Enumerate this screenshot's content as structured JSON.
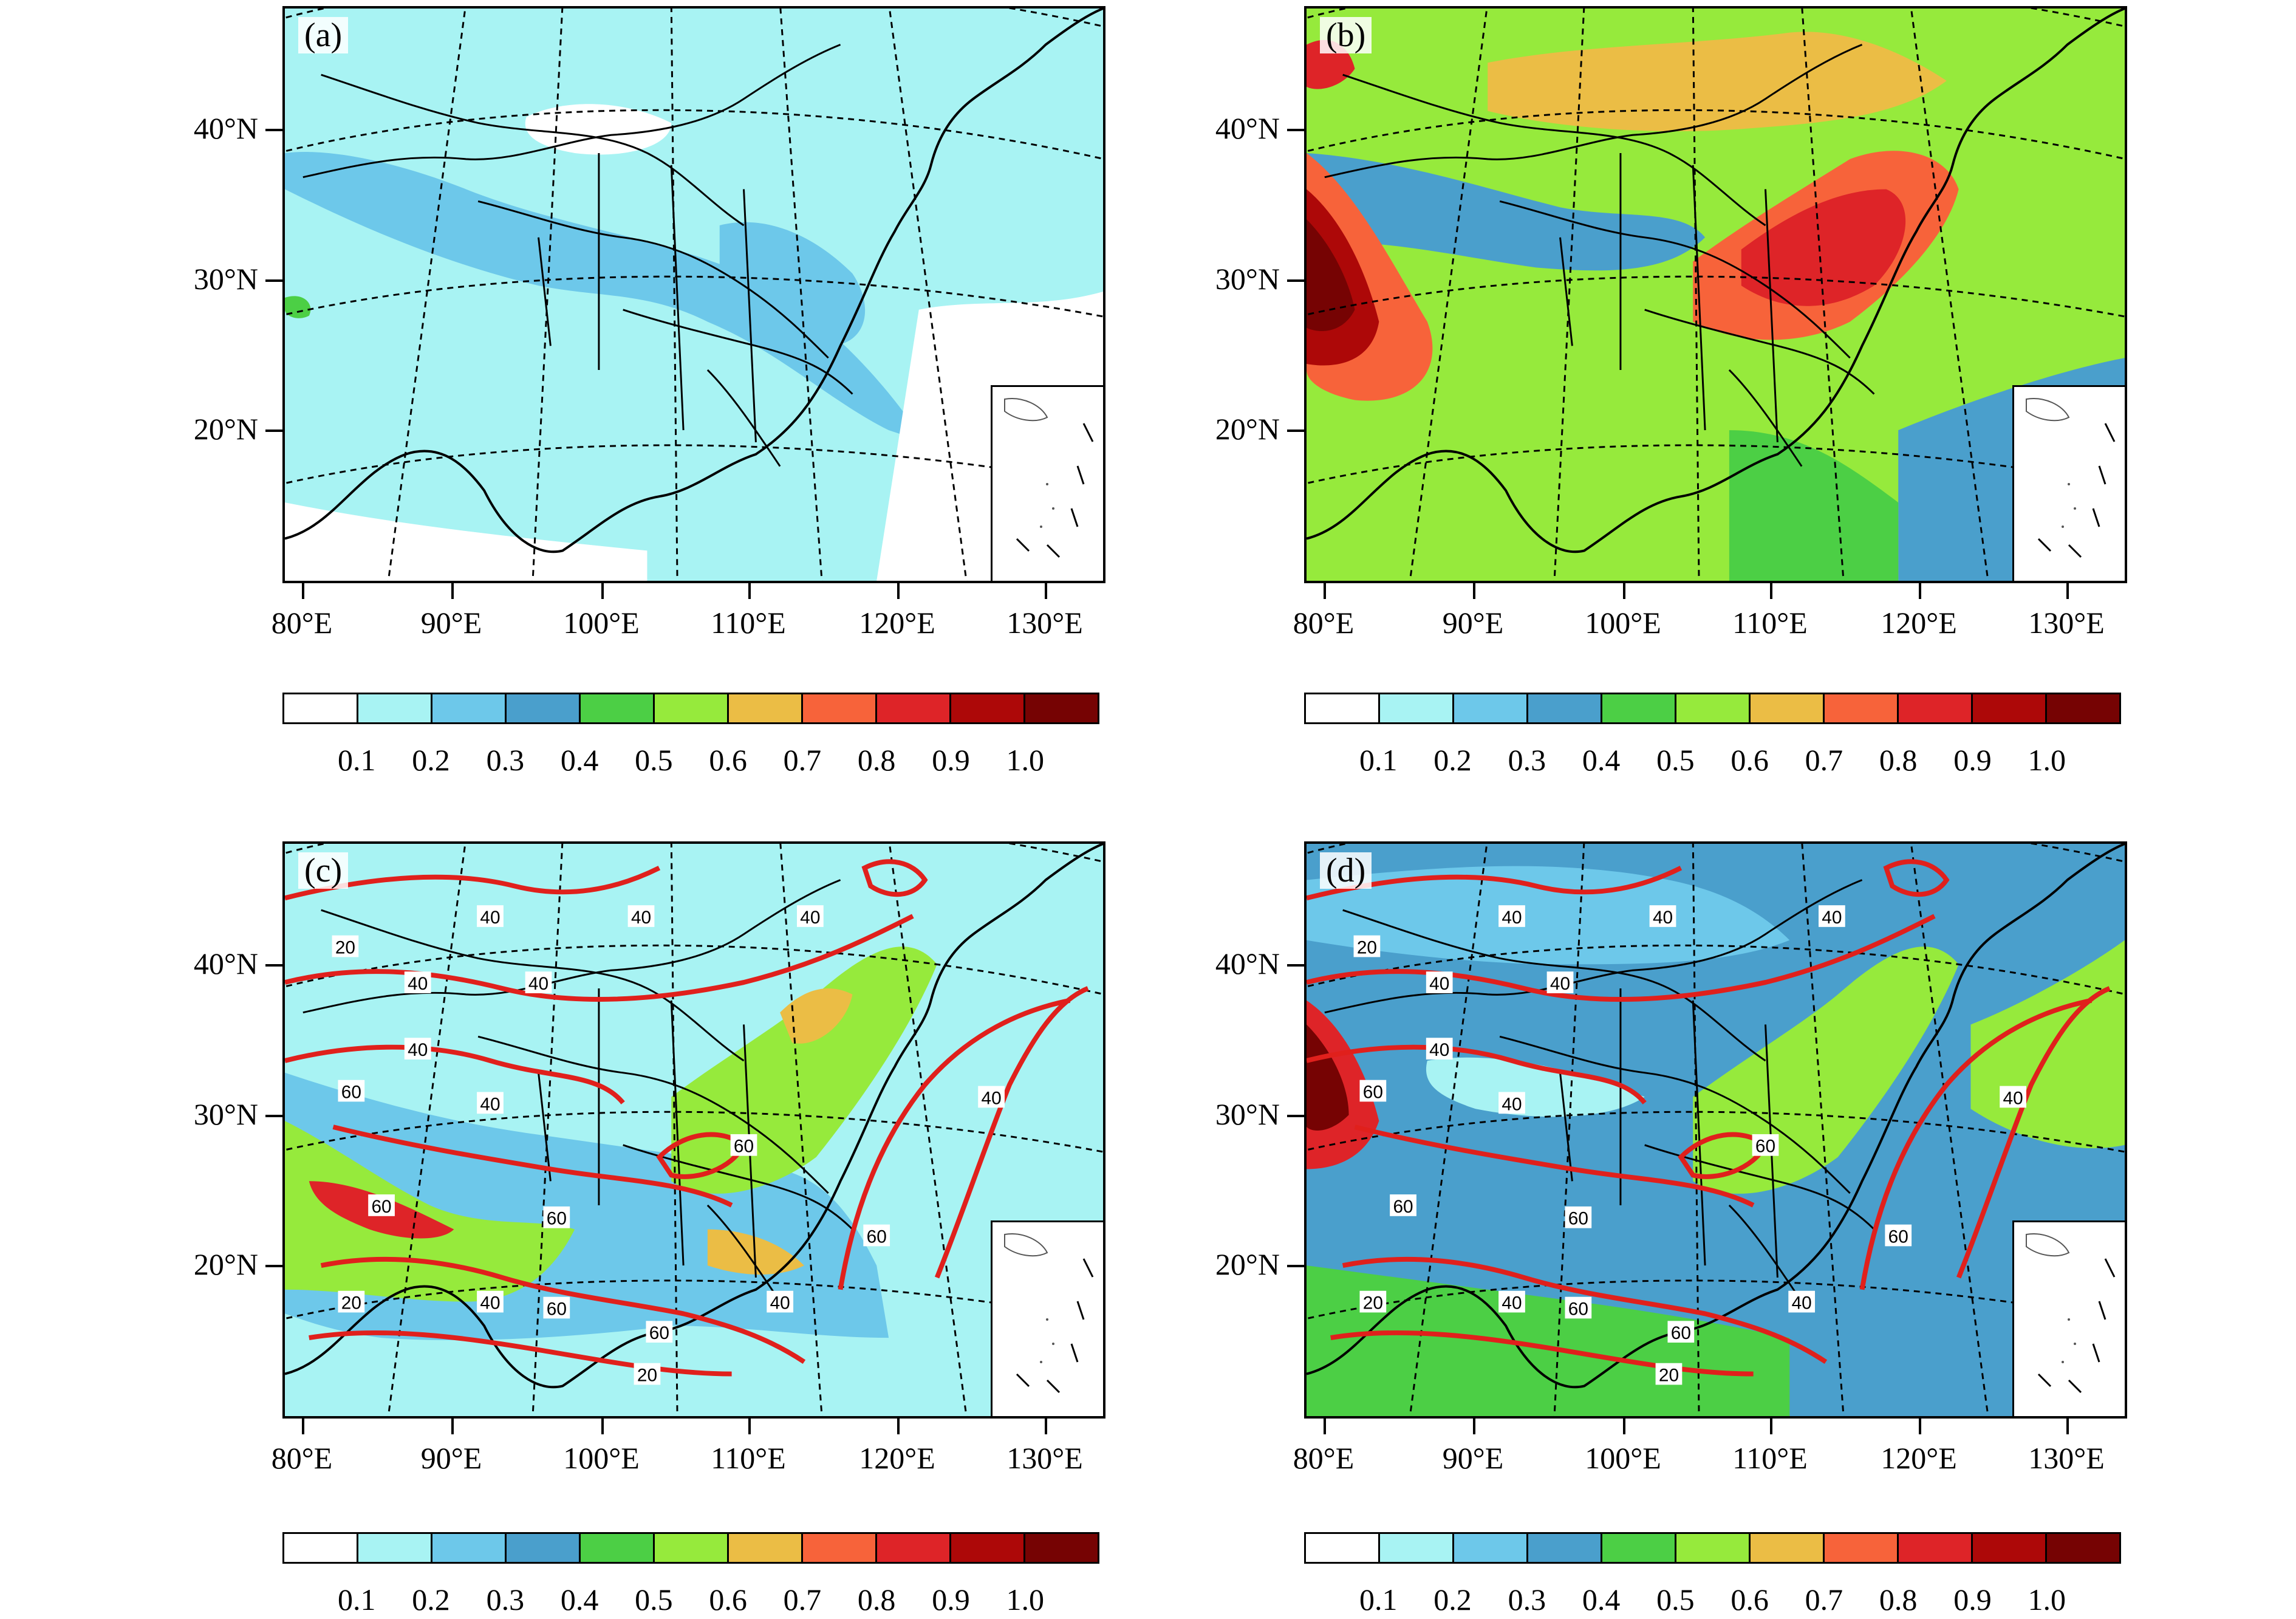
{
  "panels": [
    {
      "label": "(a)",
      "style": "a"
    },
    {
      "label": "(b)",
      "style": "b"
    },
    {
      "label": "(c)",
      "style": "c"
    },
    {
      "label": "(d)",
      "style": "d"
    }
  ],
  "lat_labels": [
    "40°N",
    "30°N",
    "20°N"
  ],
  "lon_labels": [
    "80°E",
    "90°E",
    "100°E",
    "110°E",
    "120°E",
    "130°E"
  ],
  "colorbar": {
    "colors": [
      "#ffffff",
      "#a8f3f3",
      "#6dc8ea",
      "#4a9fcc",
      "#4ccf45",
      "#96ea3c",
      "#ebbd45",
      "#f7633a",
      "#de2428",
      "#ad0808",
      "#760303"
    ],
    "labels": [
      "0.1",
      "0.2",
      "0.3",
      "0.4",
      "0.5",
      "0.6",
      "0.7",
      "0.8",
      "0.9",
      "1.0"
    ]
  },
  "contour_labels": {
    "c": [
      "20",
      "40",
      "40",
      "40",
      "40",
      "40",
      "40",
      "40",
      "60",
      "60",
      "60",
      "60",
      "60",
      "60",
      "40",
      "20",
      "20",
      "40",
      "60",
      "40"
    ],
    "d": [
      "20",
      "40",
      "40",
      "40",
      "40",
      "40",
      "40",
      "40",
      "60",
      "60",
      "60",
      "60",
      "60",
      "60",
      "40",
      "20",
      "20",
      "40",
      "60",
      "40"
    ]
  }
}
